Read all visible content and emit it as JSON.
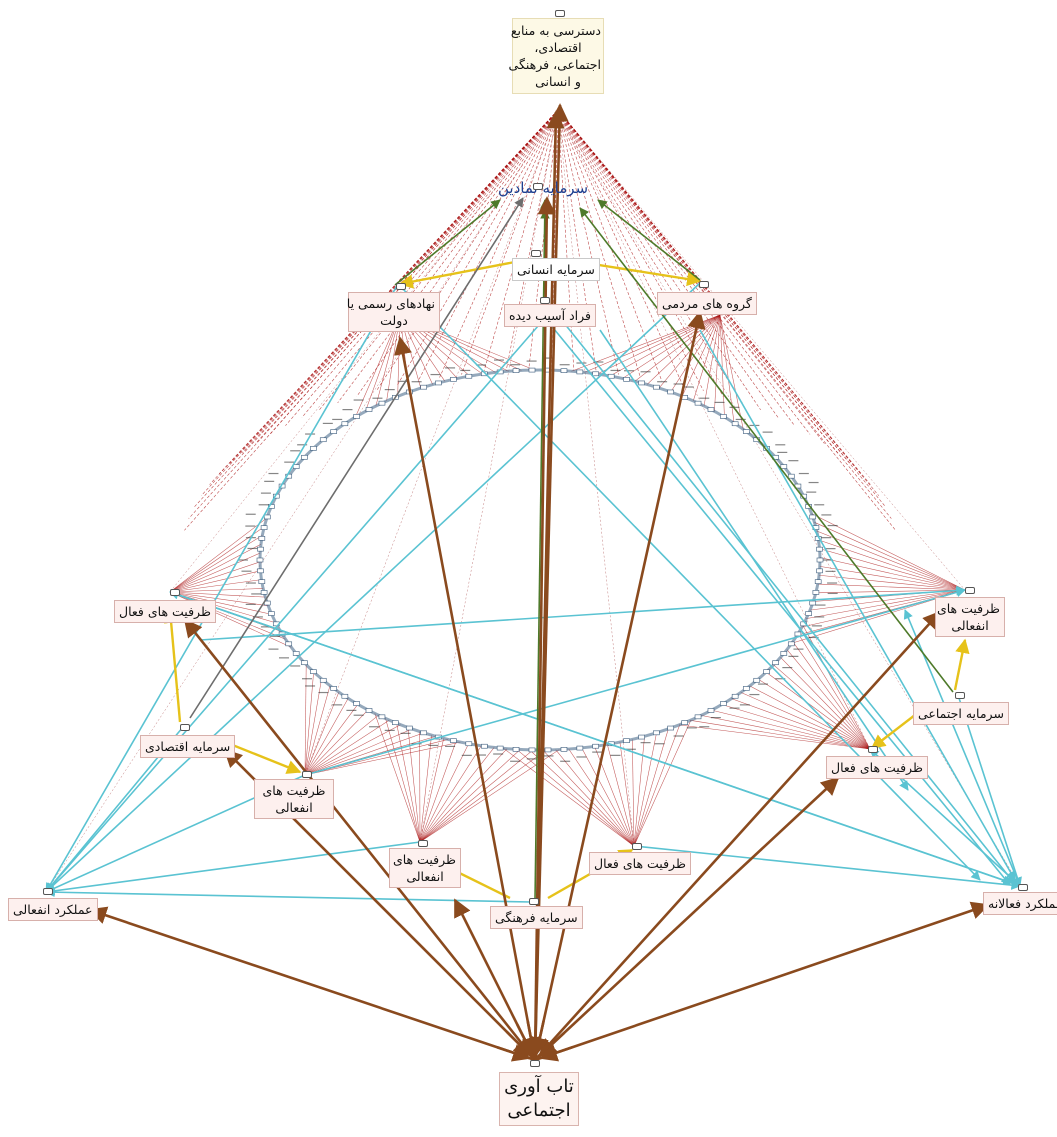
{
  "diagram": {
    "nodes": [
      {
        "id": "access",
        "label_lines": [
          "دسترسی به منابع",
          "اقتصادی،",
          "اجتماعی، فرهنگی",
          "و انسانی"
        ],
        "style": "cream"
      },
      {
        "id": "symbolic",
        "label_lines": [
          "سرمایه نمادین"
        ],
        "style": "blue-text"
      },
      {
        "id": "human",
        "label_lines": [
          "سرمایه انسانی"
        ],
        "style": "plain"
      },
      {
        "id": "formal",
        "label_lines": [
          "نهادهای رسمی یا",
          "دولت"
        ],
        "style": "pink"
      },
      {
        "id": "vulnerable",
        "label_lines": [
          "فراد آسیب دیده"
        ],
        "style": "pink"
      },
      {
        "id": "popular",
        "label_lines": [
          "گروه های مردمی"
        ],
        "style": "pink"
      },
      {
        "id": "active-left",
        "label_lines": [
          "ظرفیت های فعال"
        ],
        "style": "pink"
      },
      {
        "id": "passive-right",
        "label_lines": [
          "ظرفیت های",
          "انفعالی"
        ],
        "style": "pink"
      },
      {
        "id": "social",
        "label_lines": [
          "سرمایه اجتماعی"
        ],
        "style": "pink"
      },
      {
        "id": "active-right",
        "label_lines": [
          "ظرفیت های فعال"
        ],
        "style": "pink"
      },
      {
        "id": "economic",
        "label_lines": [
          "سرمایه اقتصادی"
        ],
        "style": "pink"
      },
      {
        "id": "passive-left",
        "label_lines": [
          "ظرفیت های",
          "انفعالی"
        ],
        "style": "pink"
      },
      {
        "id": "passive-center",
        "label_lines": [
          "ظرفیت های",
          "انفعالی"
        ],
        "style": "pink"
      },
      {
        "id": "active-center",
        "label_lines": [
          "ظرفیت های فعال"
        ],
        "style": "pink"
      },
      {
        "id": "cultural",
        "label_lines": [
          "سرمایه فرهنگی"
        ],
        "style": "pink"
      },
      {
        "id": "passive-performance",
        "label_lines": [
          "عملکرد انفعالی"
        ],
        "style": "pink"
      },
      {
        "id": "active-performance",
        "label_lines": [
          "عملکرد فعالانه"
        ],
        "style": "pink"
      },
      {
        "id": "resilience",
        "label_lines": [
          "تاب آوری",
          "اجتماعی"
        ],
        "style": "big"
      }
    ],
    "edge_colors": {
      "brown": "#8a4a1e",
      "cyan": "#5ac3d2",
      "yellow": "#e6c21a",
      "green": "#4e7a2a",
      "gray": "#6d6d6d",
      "dark_red": "#a80f0f",
      "ring": "#4f6f8f"
    }
  }
}
